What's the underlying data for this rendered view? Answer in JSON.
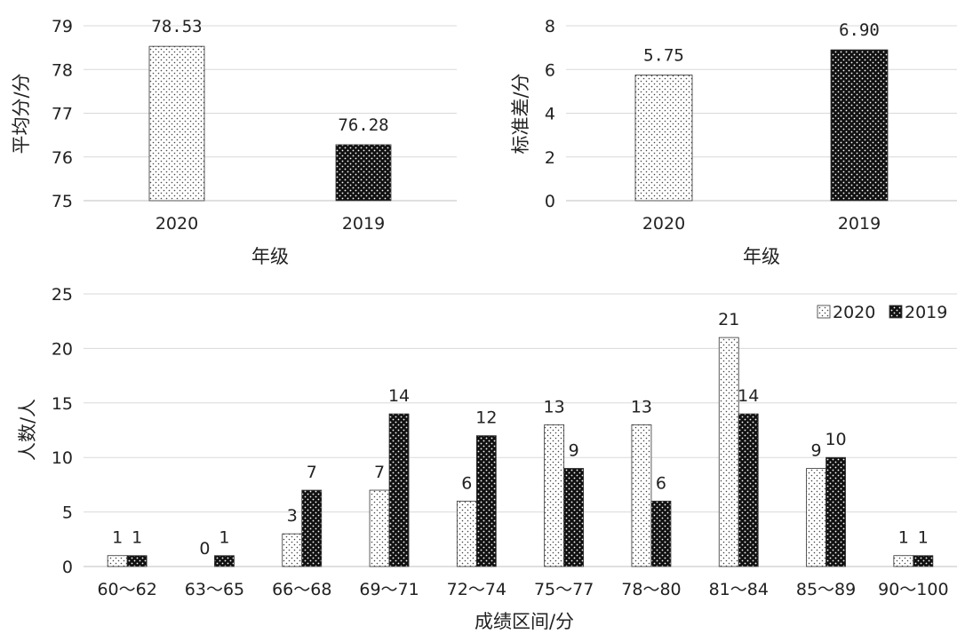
{
  "chart_data": [
    {
      "type": "bar",
      "categories": [
        "2020",
        "2019"
      ],
      "values": [
        78.53,
        76.28
      ],
      "value_labels": [
        "78.53",
        "76.28"
      ],
      "title": "",
      "xlabel": "年级",
      "ylabel": "平均分/分",
      "ylim": [
        75,
        79
      ],
      "yticks": [
        "75",
        "76",
        "77",
        "78",
        "79"
      ],
      "grid": true
    },
    {
      "type": "bar",
      "categories": [
        "2020",
        "2019"
      ],
      "values": [
        5.75,
        6.9
      ],
      "value_labels": [
        "5.75",
        "6.90"
      ],
      "title": "",
      "xlabel": "年级",
      "ylabel": "标准差/分",
      "ylim": [
        0,
        8
      ],
      "yticks": [
        "0",
        "2",
        "4",
        "6",
        "8"
      ],
      "grid": true
    },
    {
      "type": "bar",
      "categories": [
        "60～62",
        "63～65",
        "66～68",
        "69～71",
        "72～74",
        "75～77",
        "78～80",
        "81～84",
        "85～89",
        "90～100"
      ],
      "series": [
        {
          "name": "2020",
          "values": [
            1,
            0,
            3,
            7,
            6,
            13,
            13,
            21,
            9,
            1
          ]
        },
        {
          "name": "2019",
          "values": [
            1,
            1,
            7,
            14,
            12,
            9,
            6,
            14,
            10,
            1
          ]
        }
      ],
      "title": "",
      "xlabel": "成绩区间/分",
      "ylabel": "人数/人",
      "ylim": [
        0,
        25
      ],
      "yticks": [
        "0",
        "5",
        "10",
        "15",
        "20",
        "25"
      ],
      "legend": "top-right",
      "grid": true
    }
  ],
  "styles": {
    "series_2020": "light-dotted",
    "series_2019": "dark-dotted",
    "grid_color": "#d9d9d9",
    "axis_color": "#bfbfbf",
    "bar_edge": "#333333"
  }
}
